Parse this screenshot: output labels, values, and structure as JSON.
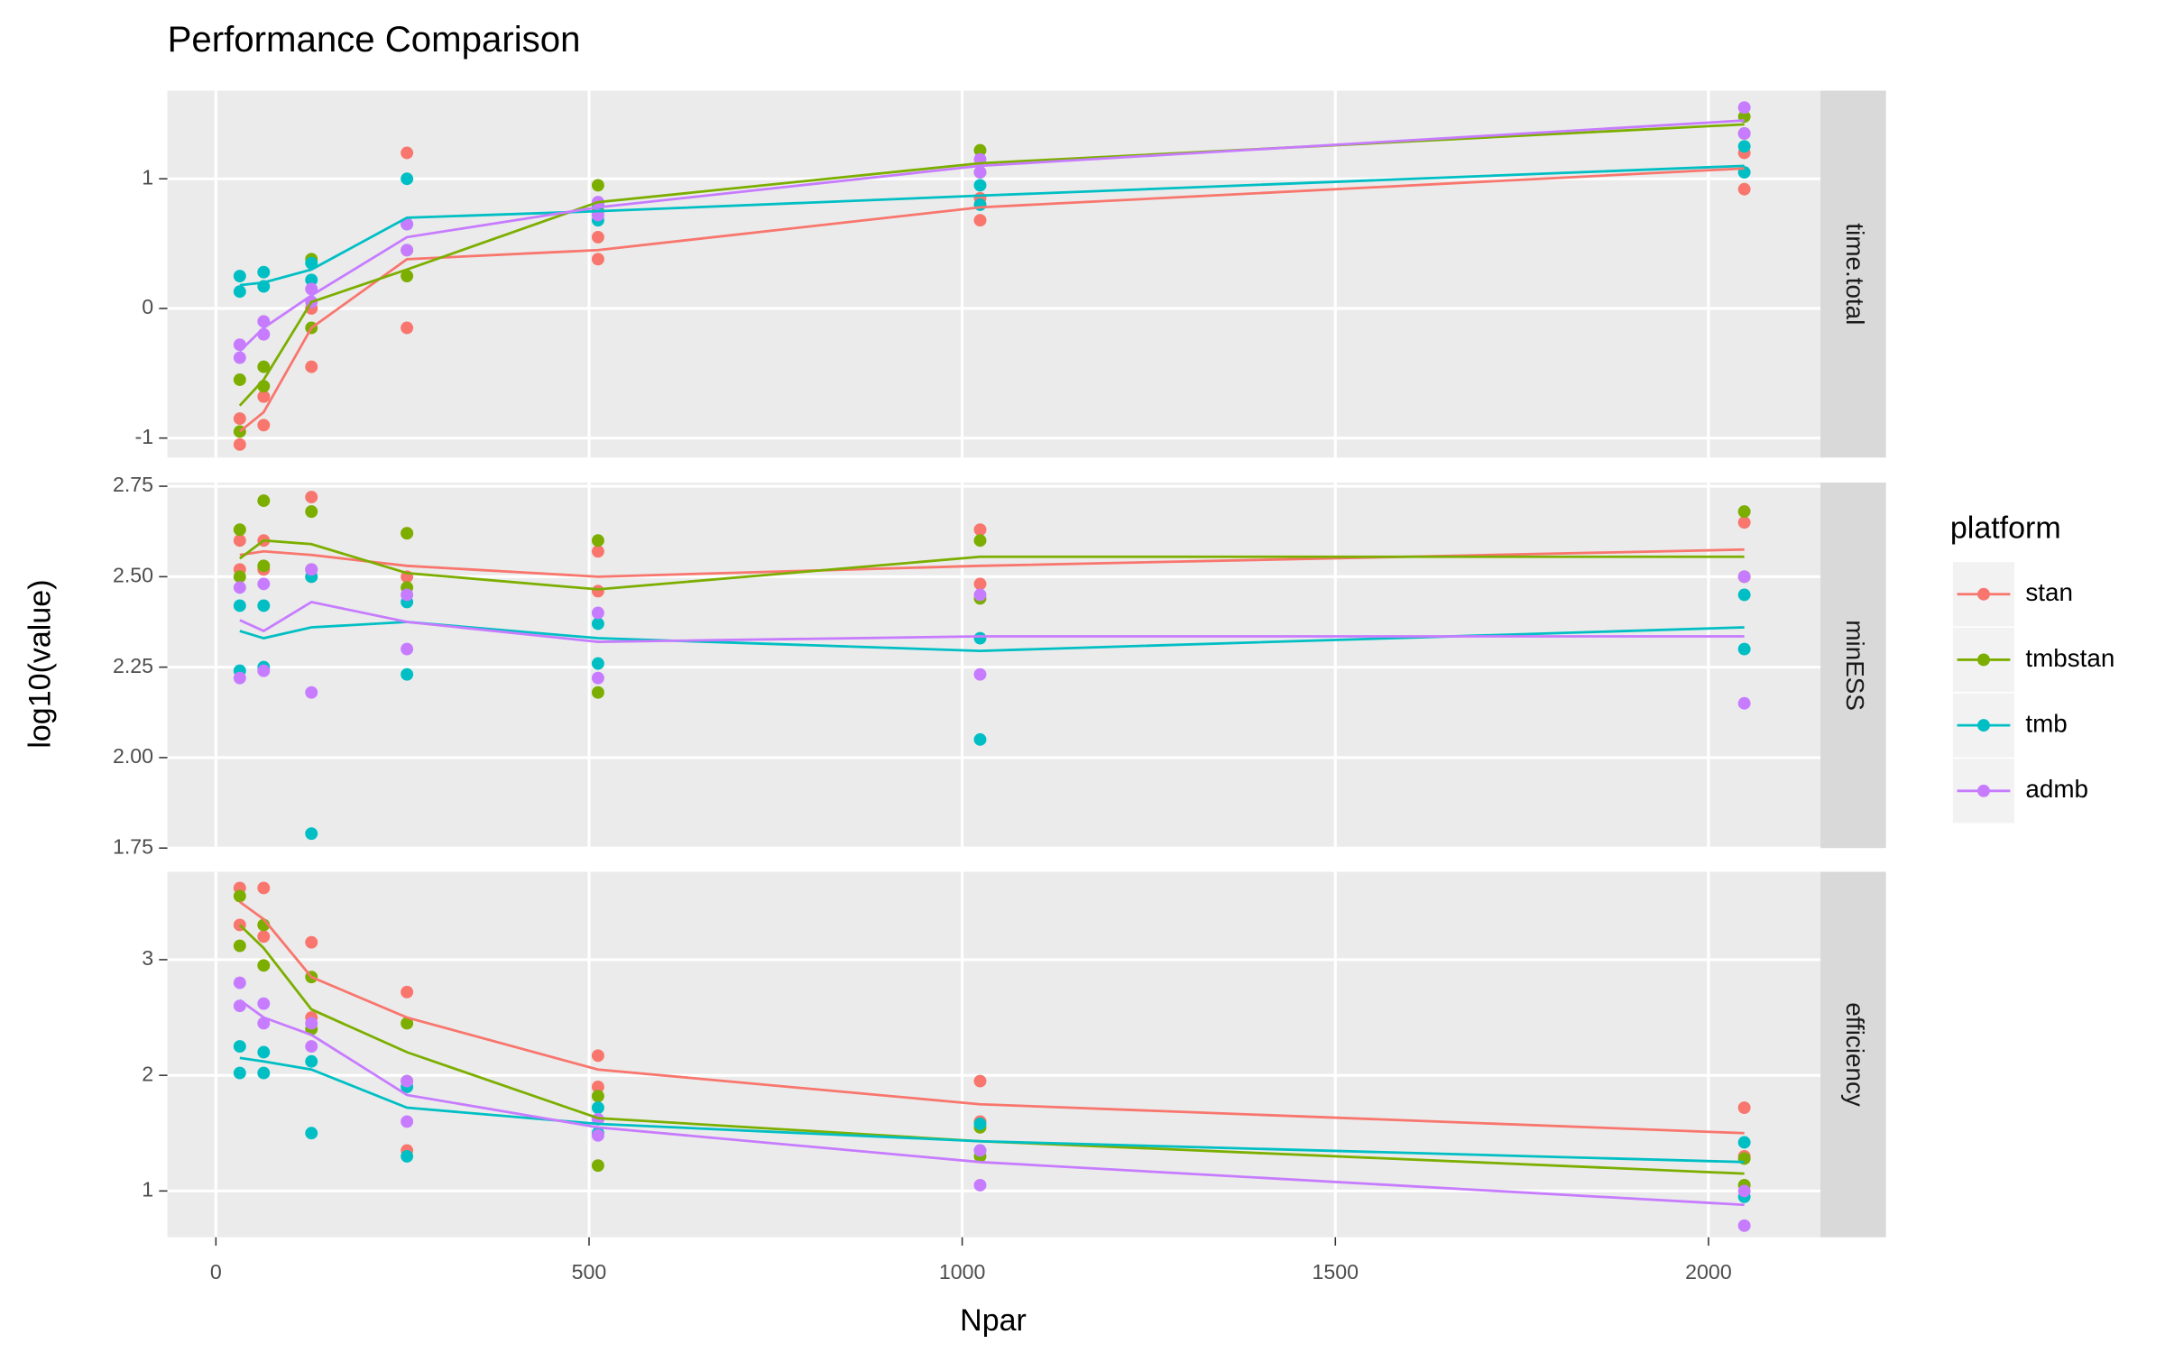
{
  "chart_data": {
    "type": "line",
    "title": "Performance Comparison",
    "xlabel": "Npar",
    "ylabel": "log10(value)",
    "legend_title": "platform",
    "grid": true,
    "x": [
      32,
      64,
      128,
      256,
      512,
      1024,
      2048
    ],
    "xlim": [
      -65,
      2150
    ],
    "xticks": [
      0,
      500,
      1000,
      1500,
      2000
    ],
    "series": [
      {
        "name": "stan",
        "color": "#F8766D"
      },
      {
        "name": "tmbstan",
        "color": "#7CAE00"
      },
      {
        "name": "tmb",
        "color": "#00BFC4"
      },
      {
        "name": "admb",
        "color": "#C77CFF"
      }
    ],
    "facets": [
      {
        "strip": "time.total",
        "ylim": [
          -1.15,
          1.68
        ],
        "yticks": [
          -1,
          0,
          1
        ],
        "values": [
          [
            -0.95,
            -0.8,
            -0.15,
            0.38,
            0.45,
            0.78,
            1.08
          ],
          [
            -0.75,
            -0.55,
            0.05,
            0.3,
            0.82,
            1.12,
            1.42
          ],
          [
            0.18,
            0.2,
            0.3,
            0.7,
            0.75,
            0.87,
            1.1
          ],
          [
            -0.33,
            -0.15,
            0.1,
            0.55,
            0.78,
            1.1,
            1.45
          ]
        ],
        "point_low": [
          [
            -1.05,
            -0.9,
            -0.45,
            -0.15,
            0.38,
            0.68,
            0.92
          ],
          [
            -0.95,
            -0.6,
            -0.15,
            0.25,
            0.75,
            1.05,
            1.35
          ],
          [
            0.13,
            0.17,
            0.22,
            0.65,
            0.68,
            0.8,
            1.05
          ],
          [
            -0.38,
            -0.2,
            0.05,
            0.45,
            0.72,
            1.05,
            1.35
          ]
        ],
        "point_high": [
          [
            -0.85,
            -0.68,
            0.0,
            1.2,
            0.55,
            0.85,
            1.2
          ],
          [
            -0.55,
            -0.45,
            0.38,
            0.45,
            0.95,
            1.22,
            1.48
          ],
          [
            0.25,
            0.28,
            0.35,
            1.0,
            0.8,
            0.95,
            1.25
          ],
          [
            -0.28,
            -0.1,
            0.15,
            0.65,
            0.82,
            1.15,
            1.55
          ]
        ]
      },
      {
        "strip": "minESS",
        "ylim": [
          1.75,
          2.76
        ],
        "yticks": [
          1.75,
          {
            "value": 2,
            "label": "2.00"
          },
          2.25,
          {
            "value": 2.5,
            "label": "2.50"
          },
          2.75
        ],
        "values": [
          [
            2.56,
            2.57,
            2.56,
            2.53,
            2.5,
            2.53,
            2.575
          ],
          [
            2.55,
            2.6,
            2.59,
            2.51,
            2.465,
            2.555,
            2.555
          ],
          [
            2.35,
            2.33,
            2.36,
            2.375,
            2.33,
            2.295,
            2.36
          ],
          [
            2.38,
            2.35,
            2.43,
            2.375,
            2.32,
            2.335,
            2.335
          ]
        ],
        "point_low": [
          [
            2.52,
            2.52,
            2.5,
            2.5,
            2.46,
            2.48,
            2.5
          ],
          [
            2.5,
            2.53,
            2.52,
            2.47,
            2.18,
            2.44,
            2.5
          ],
          [
            2.24,
            2.25,
            1.79,
            2.23,
            2.26,
            2.05,
            2.3
          ],
          [
            2.22,
            2.24,
            2.18,
            2.3,
            2.22,
            2.23,
            2.15
          ]
        ],
        "point_high": [
          [
            2.6,
            2.6,
            2.72,
            2.62,
            2.57,
            2.63,
            2.65
          ],
          [
            2.63,
            2.71,
            2.68,
            2.62,
            2.6,
            2.6,
            2.68
          ],
          [
            2.42,
            2.42,
            2.5,
            2.43,
            2.37,
            2.33,
            2.45
          ],
          [
            2.47,
            2.48,
            2.52,
            2.45,
            2.4,
            2.45,
            2.5
          ]
        ]
      },
      {
        "strip": "efficiency",
        "ylim": [
          0.6,
          3.76
        ],
        "yticks": [
          1,
          2,
          3
        ],
        "values": [
          [
            3.5,
            3.35,
            2.85,
            2.5,
            2.05,
            1.75,
            1.5
          ],
          [
            3.3,
            3.1,
            2.57,
            2.2,
            1.63,
            1.43,
            1.15
          ],
          [
            2.15,
            2.12,
            2.05,
            1.72,
            1.58,
            1.43,
            1.25
          ],
          [
            2.65,
            2.5,
            2.35,
            1.83,
            1.55,
            1.25,
            0.88
          ]
        ],
        "point_low": [
          [
            3.3,
            3.2,
            2.5,
            1.35,
            1.9,
            1.6,
            1.3
          ],
          [
            3.12,
            2.95,
            2.4,
            1.95,
            1.22,
            1.3,
            1.05
          ],
          [
            2.02,
            2.02,
            1.5,
            1.3,
            1.5,
            1.35,
            0.95
          ],
          [
            2.6,
            2.45,
            2.25,
            1.6,
            1.48,
            1.05,
            0.7
          ]
        ],
        "point_high": [
          [
            3.62,
            3.62,
            3.15,
            2.72,
            2.17,
            1.95,
            1.72
          ],
          [
            3.55,
            3.3,
            2.85,
            2.45,
            1.82,
            1.55,
            1.28
          ],
          [
            2.25,
            2.2,
            2.12,
            1.9,
            1.72,
            1.58,
            1.42
          ],
          [
            2.8,
            2.62,
            2.45,
            1.95,
            1.62,
            1.35,
            1.0
          ]
        ]
      }
    ]
  }
}
